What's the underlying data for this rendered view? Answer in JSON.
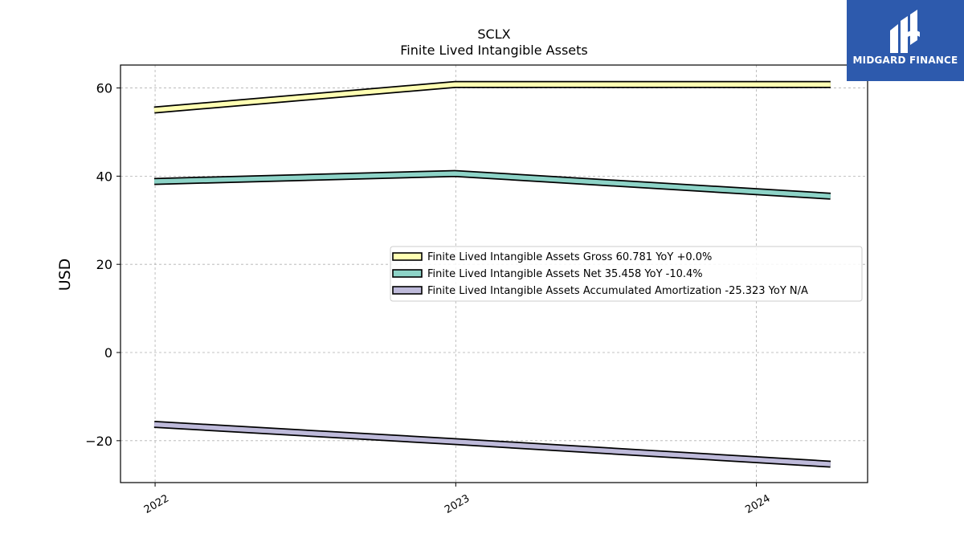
{
  "brand": {
    "name": "MIDGARD FINANCE",
    "logo_icon": "midgard-finance-logo-icon",
    "color": "#2d5aad"
  },
  "chart_data": {
    "type": "line",
    "title": "SCLX",
    "subtitle": "Finite Lived Intangible Assets",
    "ylabel": "USD",
    "xlabel": "",
    "x_ticks": [
      "2022",
      "2023",
      "2024"
    ],
    "y_ticks": [
      -20,
      0,
      20,
      40,
      60
    ],
    "ylim": [
      -29.5,
      65.2
    ],
    "xlim": [
      "2021-11-20",
      "2024-05-15"
    ],
    "grid": true,
    "legend_position": "center-right",
    "x": [
      "2021-12-31",
      "2022-12-31",
      "2024-03-31"
    ],
    "series": [
      {
        "name": "Finite Lived Intangible Assets Gross",
        "legend_label": "Finite Lived Intangible Assets Gross  60.781 YoY +0.0%",
        "color": "#ffffb3",
        "values": [
          55.0,
          60.781,
          60.781
        ]
      },
      {
        "name": "Finite Lived Intangible Assets Net",
        "legend_label": "Finite Lived Intangible Assets Net  35.458 YoY -10.4%",
        "color": "#8dd3c7",
        "values": [
          38.8,
          40.6,
          35.458
        ]
      },
      {
        "name": "Finite Lived Intangible Assets Accumulated Amortization",
        "legend_label": "Finite Lived Intangible Assets Accumulated Amortization  -25.323 YoY N/A",
        "color": "#bebada",
        "values": [
          -16.3,
          -20.2,
          -25.323
        ]
      }
    ]
  }
}
